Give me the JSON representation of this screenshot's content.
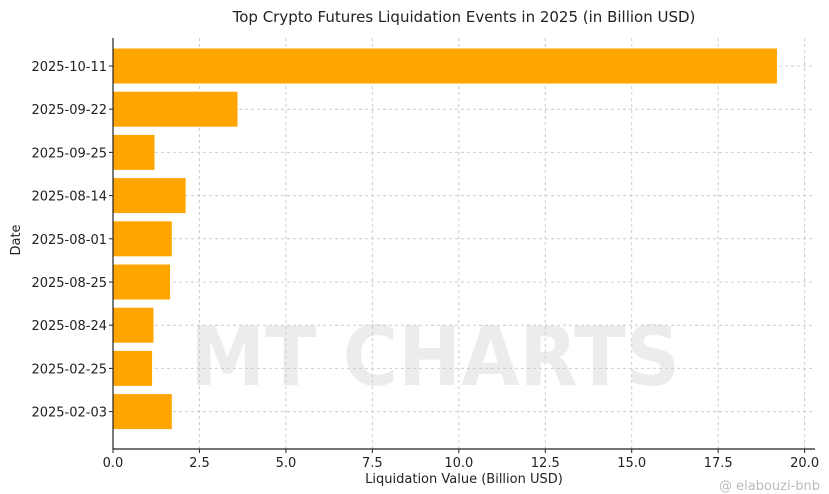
{
  "chart_data": {
    "type": "bar",
    "orientation": "horizontal",
    "title": "Top Crypto Futures Liquidation Events in 2025 (in Billion USD)",
    "xlabel": "Liquidation Value (Billion USD)",
    "ylabel": "Date",
    "categories": [
      "2025-10-11",
      "2025-09-22",
      "2025-09-25",
      "2025-08-14",
      "2025-08-01",
      "2025-08-25",
      "2025-08-24",
      "2025-02-25",
      "2025-02-03"
    ],
    "values": [
      19.2,
      3.6,
      1.2,
      2.1,
      1.7,
      1.65,
      1.17,
      1.13,
      1.7
    ],
    "xlim": [
      0,
      20.3
    ],
    "xticks": [
      "0.0",
      "2.5",
      "5.0",
      "7.5",
      "10.0",
      "12.5",
      "15.0",
      "17.5",
      "20.0"
    ],
    "grid": true,
    "bar_color": "#FFA500",
    "watermark": "MT CHARTS",
    "credit": "@ elabouzi-bnb"
  }
}
